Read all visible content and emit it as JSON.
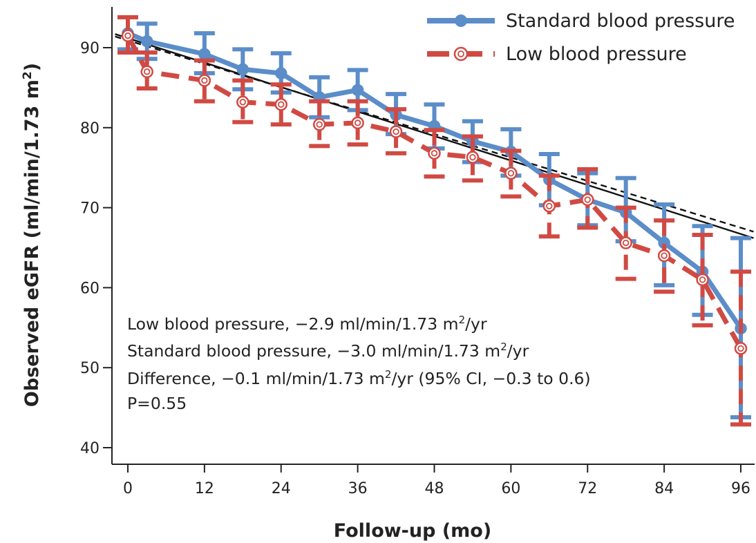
{
  "chart_data": {
    "type": "line",
    "xlabel": "Follow-up (mo)",
    "ylabel_main": "Observed eGFR (ml/min/1.73 m",
    "ylabel_sup": "2",
    "ylabel_end": ")",
    "xlim": [
      0,
      96
    ],
    "ylim": [
      40,
      95
    ],
    "xticks": [
      0,
      12,
      24,
      36,
      48,
      60,
      72,
      84,
      96
    ],
    "yticks": [
      40,
      50,
      60,
      70,
      80,
      90
    ],
    "grid": false,
    "legend_position": "top-right",
    "series": [
      {
        "name": "Standard blood pressure",
        "color": "#5B8DC9",
        "line_style": "solid",
        "marker": "filled-circle",
        "points": [
          {
            "x": 0,
            "y": 91.8,
            "lo": 89.8,
            "hi": 93.8
          },
          {
            "x": 3,
            "y": 90.8,
            "lo": 88.6,
            "hi": 93.0
          },
          {
            "x": 12,
            "y": 89.2,
            "lo": 86.8,
            "hi": 91.8
          },
          {
            "x": 18,
            "y": 87.3,
            "lo": 84.8,
            "hi": 89.8
          },
          {
            "x": 24,
            "y": 86.8,
            "lo": 84.4,
            "hi": 89.3
          },
          {
            "x": 30,
            "y": 83.8,
            "lo": 81.3,
            "hi": 86.3
          },
          {
            "x": 36,
            "y": 84.7,
            "lo": 82.2,
            "hi": 87.2
          },
          {
            "x": 42,
            "y": 81.6,
            "lo": 79.2,
            "hi": 84.2
          },
          {
            "x": 48,
            "y": 80.2,
            "lo": 77.4,
            "hi": 82.9
          },
          {
            "x": 54,
            "y": 78.3,
            "lo": 75.7,
            "hi": 80.8
          },
          {
            "x": 60,
            "y": 77.0,
            "lo": 74.0,
            "hi": 79.8
          },
          {
            "x": 66,
            "y": 73.5,
            "lo": 70.3,
            "hi": 76.7
          },
          {
            "x": 72,
            "y": 71.0,
            "lo": 67.8,
            "hi": 74.3
          },
          {
            "x": 78,
            "y": 69.4,
            "lo": 65.8,
            "hi": 73.7
          },
          {
            "x": 84,
            "y": 65.6,
            "lo": 60.3,
            "hi": 70.4
          },
          {
            "x": 90,
            "y": 62.0,
            "lo": 56.6,
            "hi": 67.7
          },
          {
            "x": 96,
            "y": 54.9,
            "lo": 43.8,
            "hi": 66.2
          }
        ]
      },
      {
        "name": "Low blood pressure",
        "color": "#D04A43",
        "line_style": "dashed",
        "marker": "open-circle",
        "points": [
          {
            "x": 0,
            "y": 91.5,
            "lo": 89.4,
            "hi": 93.8
          },
          {
            "x": 3,
            "y": 87.0,
            "lo": 84.9,
            "hi": 89.4
          },
          {
            "x": 12,
            "y": 85.9,
            "lo": 83.3,
            "hi": 88.4
          },
          {
            "x": 18,
            "y": 83.2,
            "lo": 80.7,
            "hi": 85.9
          },
          {
            "x": 24,
            "y": 82.9,
            "lo": 80.4,
            "hi": 85.4
          },
          {
            "x": 30,
            "y": 80.4,
            "lo": 77.7,
            "hi": 83.3
          },
          {
            "x": 36,
            "y": 80.6,
            "lo": 77.9,
            "hi": 83.3
          },
          {
            "x": 42,
            "y": 79.5,
            "lo": 76.8,
            "hi": 82.3
          },
          {
            "x": 48,
            "y": 76.8,
            "lo": 73.9,
            "hi": 79.7
          },
          {
            "x": 54,
            "y": 76.3,
            "lo": 73.4,
            "hi": 78.9
          },
          {
            "x": 60,
            "y": 74.3,
            "lo": 71.4,
            "hi": 77.1
          },
          {
            "x": 66,
            "y": 70.2,
            "lo": 66.4,
            "hi": 74.0
          },
          {
            "x": 72,
            "y": 71.0,
            "lo": 67.5,
            "hi": 74.8
          },
          {
            "x": 78,
            "y": 65.6,
            "lo": 61.1,
            "hi": 70.0
          },
          {
            "x": 84,
            "y": 64.0,
            "lo": 59.5,
            "hi": 68.4
          },
          {
            "x": 90,
            "y": 61.0,
            "lo": 55.3,
            "hi": 66.6
          },
          {
            "x": 96,
            "y": 52.4,
            "lo": 42.9,
            "hi": 62.0
          }
        ]
      }
    ],
    "trend_lines": [
      {
        "style": "solid",
        "color": "#111111",
        "x": [
          -2,
          98
        ],
        "y": [
          91.7,
          66.2
        ]
      },
      {
        "style": "dashed",
        "color": "#111111",
        "x": [
          -2,
          98
        ],
        "y": [
          91.4,
          67.0
        ]
      }
    ],
    "annotations": [
      {
        "main": "Low blood pressure, −2.9 ml/min/1.73 m",
        "sup": "2",
        "end": "/yr"
      },
      {
        "main": "Standard blood pressure, −3.0 ml/min/1.73 m",
        "sup": "2",
        "end": "/yr"
      },
      {
        "main": "Difference,  −0.1 ml/min/1.73 m",
        "sup": "2",
        "end": "/yr (95% CI, −0.3 to 0.6)"
      },
      {
        "main": "P=0.55",
        "sup": "",
        "end": ""
      }
    ]
  }
}
